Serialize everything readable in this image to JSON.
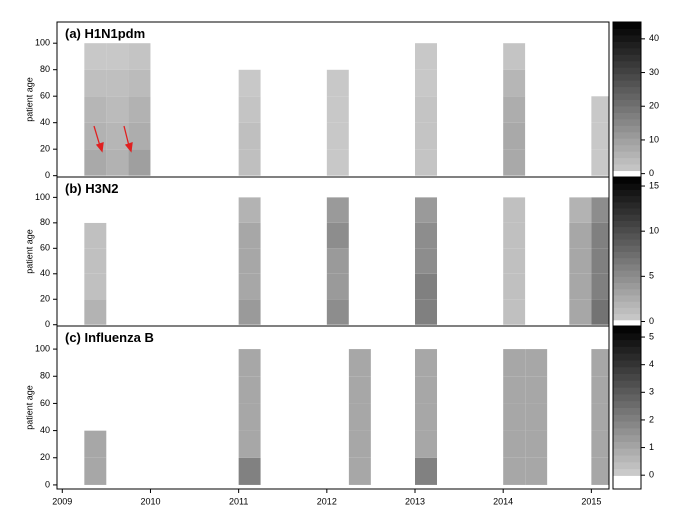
{
  "chart_data": [
    {
      "type": "heatmap",
      "title": "(a) H1N1pdm",
      "y_label": "patient age",
      "x_bins": [
        2009,
        2009.25,
        2009.5,
        2009.75,
        2010,
        2010.25,
        2010.5,
        2010.75,
        2011,
        2011.25,
        2011.5,
        2011.75,
        2012,
        2012.25,
        2012.5,
        2012.75,
        2013,
        2013.25,
        2013.5,
        2013.75,
        2014,
        2014.25,
        2014.5,
        2014.75,
        2015,
        2015.2
      ],
      "y_bins": [
        0,
        20,
        40,
        60,
        80,
        100
      ],
      "values": [
        [
          0,
          8,
          6,
          10,
          0,
          0,
          0,
          0,
          3,
          0,
          0,
          0,
          1,
          0,
          0,
          0,
          2,
          0,
          0,
          0,
          8,
          0,
          0,
          0,
          1
        ],
        [
          0,
          6,
          5,
          7,
          0,
          0,
          0,
          0,
          3,
          0,
          0,
          0,
          1,
          0,
          0,
          0,
          2,
          0,
          0,
          0,
          8,
          0,
          0,
          0,
          1
        ],
        [
          0,
          5,
          4,
          6,
          0,
          0,
          0,
          0,
          2,
          0,
          0,
          0,
          1,
          0,
          0,
          0,
          2,
          0,
          0,
          0,
          7,
          0,
          0,
          0,
          1
        ],
        [
          0,
          3,
          3,
          4,
          0,
          0,
          0,
          0,
          1,
          0,
          0,
          0,
          1,
          0,
          0,
          0,
          1,
          0,
          0,
          0,
          5,
          0,
          0,
          0,
          0
        ],
        [
          0,
          1,
          1,
          2,
          0,
          0,
          0,
          0,
          0,
          0,
          0,
          0,
          0,
          0,
          0,
          0,
          1,
          0,
          0,
          0,
          2,
          0,
          0,
          0,
          0
        ]
      ],
      "xlim": [
        2008.94,
        2015.2
      ],
      "ylim": [
        -1,
        116
      ],
      "yticks": [
        0,
        20,
        40,
        60,
        80,
        100
      ],
      "zlim": [
        -1,
        45
      ],
      "zticks": [
        0,
        10,
        20,
        30,
        40
      ]
    },
    {
      "type": "heatmap",
      "title": "(b) H3N2",
      "y_label": "patient age",
      "x_bins": [
        2009,
        2009.25,
        2009.5,
        2009.75,
        2010,
        2010.25,
        2010.5,
        2010.75,
        2011,
        2011.25,
        2011.5,
        2011.75,
        2012,
        2012.25,
        2012.5,
        2012.75,
        2013,
        2013.25,
        2013.5,
        2013.75,
        2014,
        2014.25,
        2014.5,
        2014.75,
        2015,
        2015.2
      ],
      "y_bins": [
        0,
        20,
        40,
        60,
        80,
        100
      ],
      "values": [
        [
          0,
          2,
          0,
          0,
          0,
          0,
          0,
          0,
          4,
          0,
          0,
          0,
          5,
          0,
          0,
          0,
          6,
          0,
          0,
          0,
          1,
          0,
          0,
          3,
          7
        ],
        [
          0,
          1,
          0,
          0,
          0,
          0,
          0,
          0,
          3,
          0,
          0,
          0,
          4,
          0,
          0,
          0,
          6,
          0,
          0,
          0,
          1,
          0,
          0,
          3,
          6
        ],
        [
          0,
          1,
          0,
          0,
          0,
          0,
          0,
          0,
          3,
          0,
          0,
          0,
          4,
          0,
          0,
          0,
          5,
          0,
          0,
          0,
          1,
          0,
          0,
          3,
          6
        ],
        [
          0,
          1,
          0,
          0,
          0,
          0,
          0,
          0,
          3,
          0,
          0,
          0,
          5,
          0,
          0,
          0,
          5,
          0,
          0,
          0,
          1,
          0,
          0,
          3,
          6
        ],
        [
          0,
          0,
          0,
          0,
          0,
          0,
          0,
          0,
          2,
          0,
          0,
          0,
          4,
          0,
          0,
          0,
          4,
          0,
          0,
          0,
          1,
          0,
          0,
          2,
          5
        ]
      ],
      "xlim": [
        2008.94,
        2015.2
      ],
      "ylim": [
        -1,
        116
      ],
      "yticks": [
        0,
        20,
        40,
        60,
        80,
        100
      ],
      "zlim": [
        -0.5,
        16
      ],
      "zticks": [
        0,
        5,
        10,
        15
      ]
    },
    {
      "type": "heatmap",
      "title": "(c) Influenza B",
      "y_label": "patient age",
      "x_bins": [
        2009,
        2009.25,
        2009.5,
        2009.75,
        2010,
        2010.25,
        2010.5,
        2010.75,
        2011,
        2011.25,
        2011.5,
        2011.75,
        2012,
        2012.25,
        2012.5,
        2012.75,
        2013,
        2013.25,
        2013.5,
        2013.75,
        2014,
        2014.25,
        2014.5,
        2014.75,
        2015,
        2015.2
      ],
      "y_bins": [
        0,
        20,
        40,
        60,
        80,
        100
      ],
      "values": [
        [
          0,
          1,
          0,
          0,
          0,
          0,
          0,
          0,
          2,
          0,
          0,
          0,
          0,
          1,
          0,
          0,
          2,
          0,
          0,
          0,
          1,
          1,
          0,
          0,
          1
        ],
        [
          0,
          1,
          0,
          0,
          0,
          0,
          0,
          0,
          1,
          0,
          0,
          0,
          0,
          1,
          0,
          0,
          1,
          0,
          0,
          0,
          1,
          1,
          0,
          0,
          1
        ],
        [
          0,
          0,
          0,
          0,
          0,
          0,
          0,
          0,
          1,
          0,
          0,
          0,
          0,
          1,
          0,
          0,
          1,
          0,
          0,
          0,
          1,
          1,
          0,
          0,
          1
        ],
        [
          0,
          0,
          0,
          0,
          0,
          0,
          0,
          0,
          1,
          0,
          0,
          0,
          0,
          1,
          0,
          0,
          1,
          0,
          0,
          0,
          1,
          1,
          0,
          0,
          1
        ],
        [
          0,
          0,
          0,
          0,
          0,
          0,
          0,
          0,
          1,
          0,
          0,
          0,
          0,
          1,
          0,
          0,
          1,
          0,
          0,
          0,
          1,
          1,
          0,
          0,
          1
        ]
      ],
      "xlim": [
        2008.94,
        2015.2
      ],
      "ylim": [
        -3,
        117
      ],
      "yticks": [
        0,
        20,
        40,
        60,
        80,
        100
      ],
      "xticks": [
        2009,
        2010,
        2011,
        2012,
        2013,
        2014,
        2015
      ],
      "zlim": [
        -0.5,
        5.4
      ],
      "zticks": [
        0,
        1,
        2,
        3,
        4,
        5
      ]
    }
  ]
}
